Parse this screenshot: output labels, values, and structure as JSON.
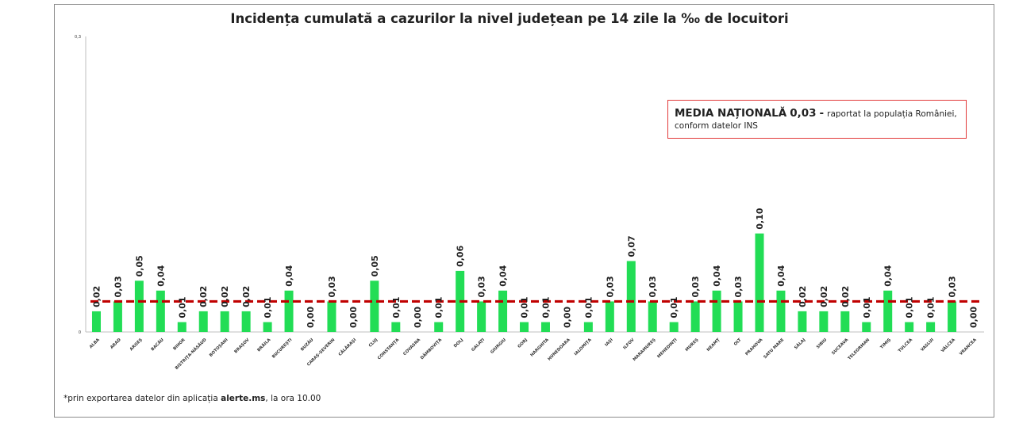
{
  "chart_data": {
    "type": "bar",
    "title": "Incidența cumulată a cazurilor la nivel județean pe 14 zile la ‰ de locuitori",
    "xlabel": "",
    "ylabel": "",
    "ylim": [
      0,
      0.3
    ],
    "y_tick_labels": [
      "0",
      "0,3"
    ],
    "categories": [
      "ALBA",
      "ARAD",
      "ARGEȘ",
      "BACĂU",
      "BIHOR",
      "BISTRIȚA-NĂSĂUD",
      "BOTOȘANI",
      "BRAȘOV",
      "BRĂILA",
      "BUCUREȘTI",
      "BUZĂU",
      "CARAȘ-SEVERIN",
      "CĂLĂRAȘI",
      "CLUJ",
      "CONSTANȚA",
      "COVASNA",
      "DÂMBOVIȚA",
      "DOLJ",
      "GALAȚI",
      "GIURGIU",
      "GORJ",
      "HARGHITA",
      "HUNEDOARA",
      "IALOMIȚA",
      "IAȘI",
      "ILFOV",
      "MARAMUREȘ",
      "MEHEDINȚI",
      "MUREȘ",
      "NEAMȚ",
      "OLT",
      "PRAHOVA",
      "SATU MARE",
      "SĂLAJ",
      "SIBIU",
      "SUCEAVA",
      "TELEORMAN",
      "TIMIȘ",
      "TULCEA",
      "VASLUI",
      "VÂLCEA",
      "VRANCEA"
    ],
    "values": [
      0.02,
      0.03,
      0.05,
      0.04,
      0.01,
      0.02,
      0.02,
      0.02,
      0.01,
      0.04,
      0.0,
      0.03,
      0.0,
      0.05,
      0.01,
      0.0,
      0.01,
      0.06,
      0.03,
      0.04,
      0.01,
      0.01,
      0.0,
      0.01,
      0.03,
      0.07,
      0.03,
      0.01,
      0.03,
      0.04,
      0.03,
      0.1,
      0.04,
      0.02,
      0.02,
      0.02,
      0.01,
      0.04,
      0.01,
      0.01,
      0.03,
      0.0
    ],
    "bar_heights": [
      0.021,
      0.031,
      0.052,
      0.042,
      0.01,
      0.021,
      0.021,
      0.021,
      0.01,
      0.042,
      0.0,
      0.031,
      0.0,
      0.052,
      0.01,
      0.0,
      0.01,
      0.062,
      0.031,
      0.042,
      0.01,
      0.01,
      0.0,
      0.01,
      0.031,
      0.072,
      0.031,
      0.01,
      0.031,
      0.042,
      0.031,
      0.1,
      0.042,
      0.021,
      0.021,
      0.021,
      0.01,
      0.042,
      0.01,
      0.01,
      0.031,
      0.0
    ],
    "value_labels": [
      "0,02",
      "0,03",
      "0,05",
      "0,04",
      "0,01",
      "0,02",
      "0,02",
      "0,02",
      "0,01",
      "0,04",
      "0,00",
      "0,03",
      "0,00",
      "0,05",
      "0,01",
      "0,00",
      "0,01",
      "0,06",
      "0,03",
      "0,04",
      "0,01",
      "0,01",
      "0,00",
      "0,01",
      "0,03",
      "0,07",
      "0,03",
      "0,01",
      "0,03",
      "0,04",
      "0,03",
      "0,10",
      "0,04",
      "0,02",
      "0,02",
      "0,02",
      "0,01",
      "0,04",
      "0,01",
      "0,01",
      "0,03",
      "0,00"
    ],
    "reference_line": {
      "value": 0.031,
      "color": "#c00000",
      "style": "dashed"
    },
    "bar_color": "#22dd55",
    "grid": false,
    "legend": "none"
  },
  "annotation": {
    "prefix": "MEDIA NAȚIONALĂ",
    "value": "0,03",
    "dash": "-",
    "text": "raportat la populația României,",
    "text2": "conform datelor INS"
  },
  "footnote": {
    "before": "*prin exportarea datelor din aplicația ",
    "app": "alerte.ms",
    "after": ", la ora 10.00"
  }
}
